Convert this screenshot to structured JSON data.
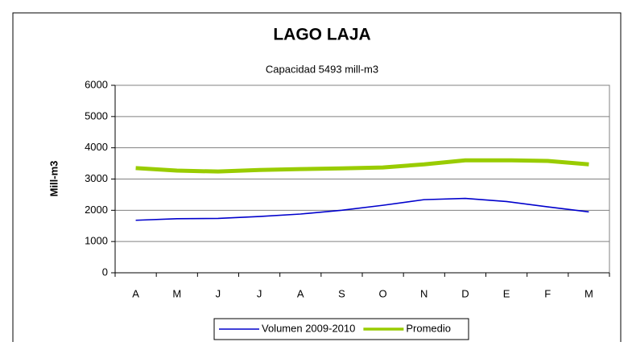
{
  "chart_data": {
    "type": "line",
    "title": "LAGO LAJA",
    "subtitle": "Capacidad  5493 mill-m3",
    "y_label": "Mill-m3",
    "categories": [
      "A",
      "M",
      "J",
      "J",
      "A",
      "S",
      "O",
      "N",
      "D",
      "E",
      "F",
      "M"
    ],
    "series": [
      {
        "name": "Volumen  2009-2010",
        "color": "#0000cc",
        "width": 1.6,
        "values": [
          1680,
          1730,
          1740,
          1800,
          1880,
          2000,
          2160,
          2340,
          2380,
          2280,
          2110,
          1950
        ]
      },
      {
        "name": "Promedio",
        "color": "#99cc00",
        "width": 5,
        "values": [
          3350,
          3270,
          3240,
          3290,
          3320,
          3340,
          3370,
          3470,
          3600,
          3600,
          3580,
          3470
        ]
      }
    ],
    "ylim": [
      0,
      6000
    ],
    "yticks": [
      0,
      1000,
      2000,
      3000,
      4000,
      5000,
      6000
    ],
    "grid": true,
    "legend": "bottom"
  }
}
